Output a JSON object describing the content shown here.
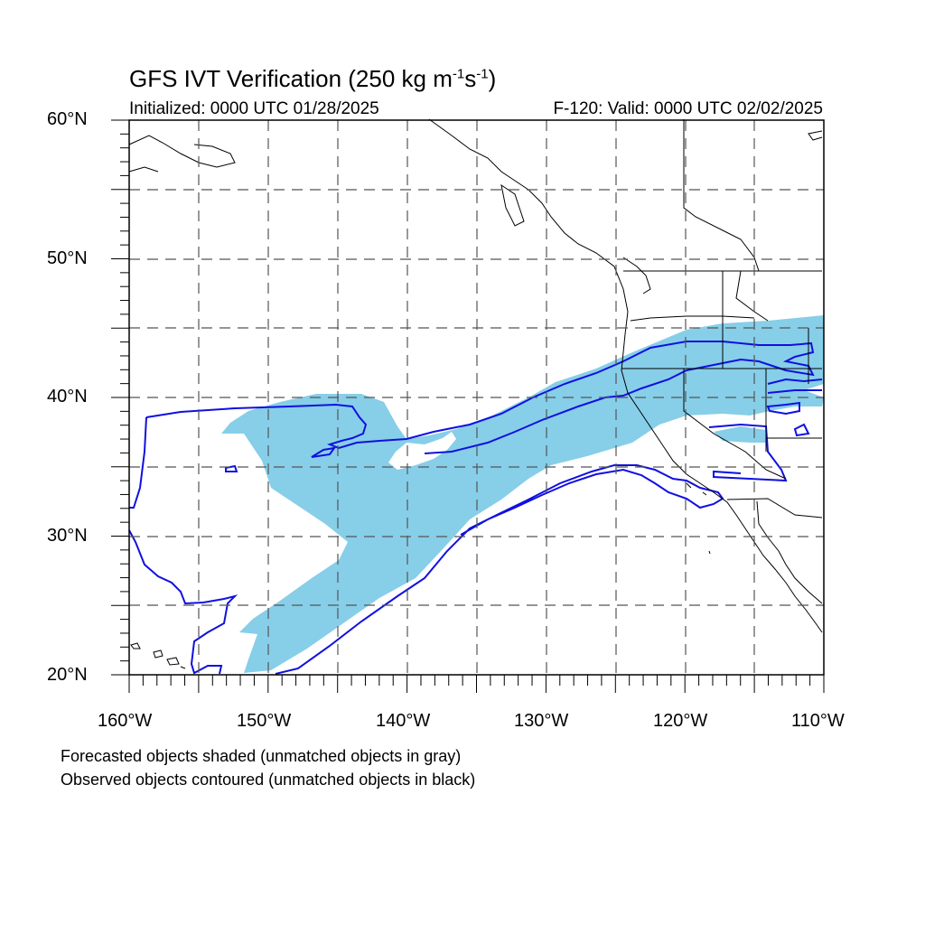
{
  "title": {
    "main": "GFS IVT Verification (250 kg m",
    "exp1": "-1",
    "mid": "s",
    "exp2": "-1",
    "end": ")"
  },
  "initialized": "Initialized: 0000 UTC 01/28/2025",
  "valid": "F-120: Valid: 0000 UTC 02/02/2025",
  "lat_labels": [
    "60°N",
    "50°N",
    "40°N",
    "30°N",
    "20°N"
  ],
  "lon_labels": [
    "160°W",
    "150°W",
    "140°W",
    "130°W",
    "120°W",
    "110°W"
  ],
  "notes": [
    "Forecasted objects shaded (unmatched objects in gray)",
    "Observed objects contoured (unmatched objects in black)"
  ],
  "map_extent": {
    "lon_min": -160,
    "lon_max": -110,
    "lat_min": 20,
    "lat_max": 60
  },
  "colors": {
    "forecast_fill": "#87CEE8",
    "observed_contour": "#1010E0",
    "coastline": "#000000"
  }
}
